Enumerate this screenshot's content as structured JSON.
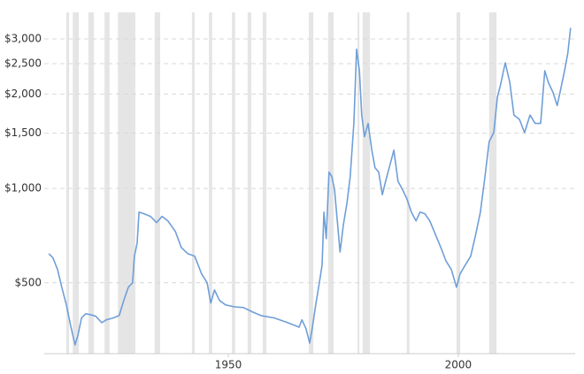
{
  "chart_data": {
    "type": "line",
    "log_scale": true,
    "grid": true,
    "xlim": [
      1910,
      2025.4
    ],
    "ylim": [
      297,
      3285
    ],
    "xticks": [
      1950,
      2000
    ],
    "yticks": [
      {
        "value": 500,
        "label": "$500"
      },
      {
        "value": 1000,
        "label": "$1,000"
      },
      {
        "value": 1500,
        "label": "$1,500"
      },
      {
        "value": 2000,
        "label": "$2,000"
      },
      {
        "value": 2500,
        "label": "$2,500"
      },
      {
        "value": 3000,
        "label": "$3,000"
      }
    ],
    "shade_color": "#e5e5e5",
    "recessions": [
      [
        1914.8,
        1915.4
      ],
      [
        1916.2,
        1917.5
      ],
      [
        1919.6,
        1920.8
      ],
      [
        1923.1,
        1924.2
      ],
      [
        1926.0,
        1929.8
      ],
      [
        1934.0,
        1935.2
      ],
      [
        1942.1,
        1942.7
      ],
      [
        1945.8,
        1946.5
      ],
      [
        1950.8,
        1951.5
      ],
      [
        1954.2,
        1955.0
      ],
      [
        1957.5,
        1958.3
      ],
      [
        1967.5,
        1968.5
      ],
      [
        1971.7,
        1972.9
      ],
      [
        1978.1,
        1978.5
      ],
      [
        1979.2,
        1980.8
      ],
      [
        1988.8,
        1989.4
      ],
      [
        1999.6,
        2000.4
      ],
      [
        2006.7,
        2008.3
      ]
    ],
    "series": [
      {
        "color": "#6f9fd8",
        "x": [
          1911.0,
          1911.9,
          1912.9,
          1913.8,
          1914.8,
          1915.8,
          1916.7,
          1917.3,
          1918.1,
          1919.0,
          1919.9,
          1921.2,
          1922.5,
          1923.5,
          1925.0,
          1926.3,
          1927.3,
          1928.3,
          1929.2,
          1929.6,
          1930.2,
          1930.6,
          1931.7,
          1933.1,
          1934.4,
          1935.6,
          1936.9,
          1938.5,
          1939.8,
          1941.2,
          1942.7,
          1944.2,
          1945.4,
          1946.2,
          1947.0,
          1948.1,
          1949.4,
          1951.3,
          1953.3,
          1955.2,
          1957.1,
          1960.0,
          1962.9,
          1965.4,
          1966.0,
          1966.9,
          1967.7,
          1968.3,
          1969.0,
          1969.8,
          1970.4,
          1970.8,
          1971.3,
          1971.9,
          1972.5,
          1973.1,
          1973.7,
          1974.3,
          1975.0,
          1975.8,
          1976.5,
          1977.3,
          1977.9,
          1978.5,
          1979.0,
          1979.6,
          1980.4,
          1981.2,
          1981.9,
          1982.7,
          1983.5,
          1984.2,
          1985.0,
          1986.0,
          1986.9,
          1987.9,
          1988.8,
          1989.8,
          1990.8,
          1991.7,
          1992.7,
          1993.8,
          1995.0,
          1996.2,
          1997.3,
          1998.5,
          1999.6,
          2000.4,
          2001.5,
          2002.7,
          2003.8,
          2004.8,
          2005.8,
          2006.7,
          2007.7,
          2008.5,
          2009.2,
          2010.2,
          2011.2,
          2012.1,
          2013.3,
          2014.4,
          2015.6,
          2016.7,
          2017.9,
          2018.8,
          2019.6,
          2020.6,
          2021.5,
          2022.3,
          2023.1,
          2023.8,
          2024.4
        ],
        "values": [
          619,
          600,
          551,
          484,
          425,
          361,
          317,
          339,
          386,
          398,
          396,
          391,
          373,
          381,
          386,
          393,
          439,
          484,
          500,
          608,
          669,
          840,
          830,
          814,
          778,
          814,
          787,
          729,
          648,
          619,
          608,
          534,
          500,
          431,
          474,
          439,
          425,
          419,
          417,
          404,
          393,
          386,
          373,
          361,
          381,
          357,
          321,
          361,
          425,
          500,
          569,
          840,
          692,
          1127,
          1092,
          990,
          788,
          627,
          763,
          897,
          1092,
          1612,
          2780,
          2372,
          1714,
          1461,
          1612,
          1324,
          1165,
          1127,
          955,
          1054,
          1165,
          1324,
          1054,
          990,
          928,
          840,
          788,
          840,
          831,
          788,
          715,
          648,
          588,
          551,
          484,
          534,
          569,
          608,
          715,
          840,
          1092,
          1410,
          1507,
          1954,
          2148,
          2517,
          2175,
          1714,
          1660,
          1507,
          1714,
          1612,
          1612,
          2372,
          2175,
          2025,
          1838,
          2087,
          2372,
          2700,
          3250
        ]
      }
    ]
  }
}
